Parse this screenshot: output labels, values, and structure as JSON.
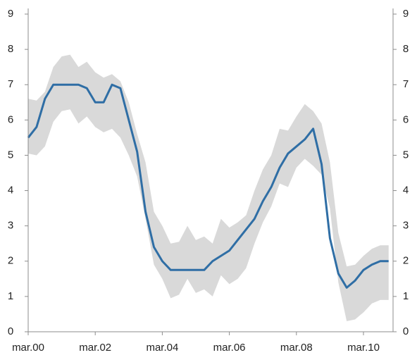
{
  "chart_data": {
    "type": "line",
    "categories": [
      "mar.00",
      null,
      null,
      null,
      null,
      null,
      null,
      null,
      "mar.02",
      null,
      null,
      null,
      null,
      null,
      null,
      null,
      "mar.04",
      null,
      null,
      null,
      null,
      null,
      null,
      null,
      "mar.06",
      null,
      null,
      null,
      null,
      null,
      null,
      null,
      "mar.08",
      null,
      null,
      null,
      null,
      null,
      null,
      null,
      "mar.10",
      null,
      null,
      null
    ],
    "series": [
      {
        "color": "#2f6ea5",
        "values": [
          5.5,
          5.8,
          6.6,
          7.0,
          7.0,
          7.0,
          7.0,
          6.9,
          6.5,
          6.5,
          7.0,
          6.9,
          6.0,
          5.1,
          3.4,
          2.4,
          2.0,
          1.75,
          1.75,
          1.75,
          1.75,
          1.75,
          2.0,
          2.15,
          2.3,
          2.6,
          2.9,
          3.2,
          3.7,
          4.1,
          4.65,
          5.05,
          5.25,
          5.45,
          5.75,
          4.75,
          2.65,
          1.65,
          1.25,
          1.45,
          1.75,
          1.9,
          2.0,
          2.0
        ]
      }
    ],
    "band": {
      "color": "#d9d9d9",
      "upper": [
        6.6,
        6.55,
        6.8,
        7.5,
        7.8,
        7.85,
        7.5,
        7.65,
        7.35,
        7.2,
        7.3,
        7.1,
        6.5,
        5.6,
        4.8,
        3.4,
        3.0,
        2.5,
        2.55,
        3.0,
        2.6,
        2.7,
        2.5,
        3.2,
        2.95,
        3.1,
        3.3,
        4.0,
        4.6,
        5.0,
        5.75,
        5.7,
        6.1,
        6.45,
        6.25,
        5.9,
        4.8,
        2.8,
        1.85,
        1.9,
        2.15,
        2.35,
        2.45,
        2.45
      ],
      "lower": [
        5.05,
        5.0,
        5.25,
        5.95,
        6.25,
        6.3,
        5.9,
        6.1,
        5.8,
        5.65,
        5.75,
        5.5,
        5.0,
        4.4,
        3.2,
        1.9,
        1.5,
        0.95,
        1.05,
        1.5,
        1.1,
        1.2,
        1.0,
        1.6,
        1.35,
        1.5,
        1.8,
        2.5,
        3.1,
        3.55,
        4.2,
        4.1,
        4.65,
        4.9,
        4.7,
        4.45,
        3.5,
        1.4,
        0.3,
        0.35,
        0.55,
        0.8,
        0.9,
        0.9
      ]
    },
    "ylim": [
      0,
      9
    ],
    "yticks": [
      0,
      1,
      2,
      3,
      4,
      5,
      6,
      7,
      8,
      9
    ],
    "y2lim": [
      0,
      9
    ],
    "y2ticks": [
      0,
      1,
      2,
      3,
      4,
      5,
      6,
      7,
      8,
      9
    ]
  }
}
